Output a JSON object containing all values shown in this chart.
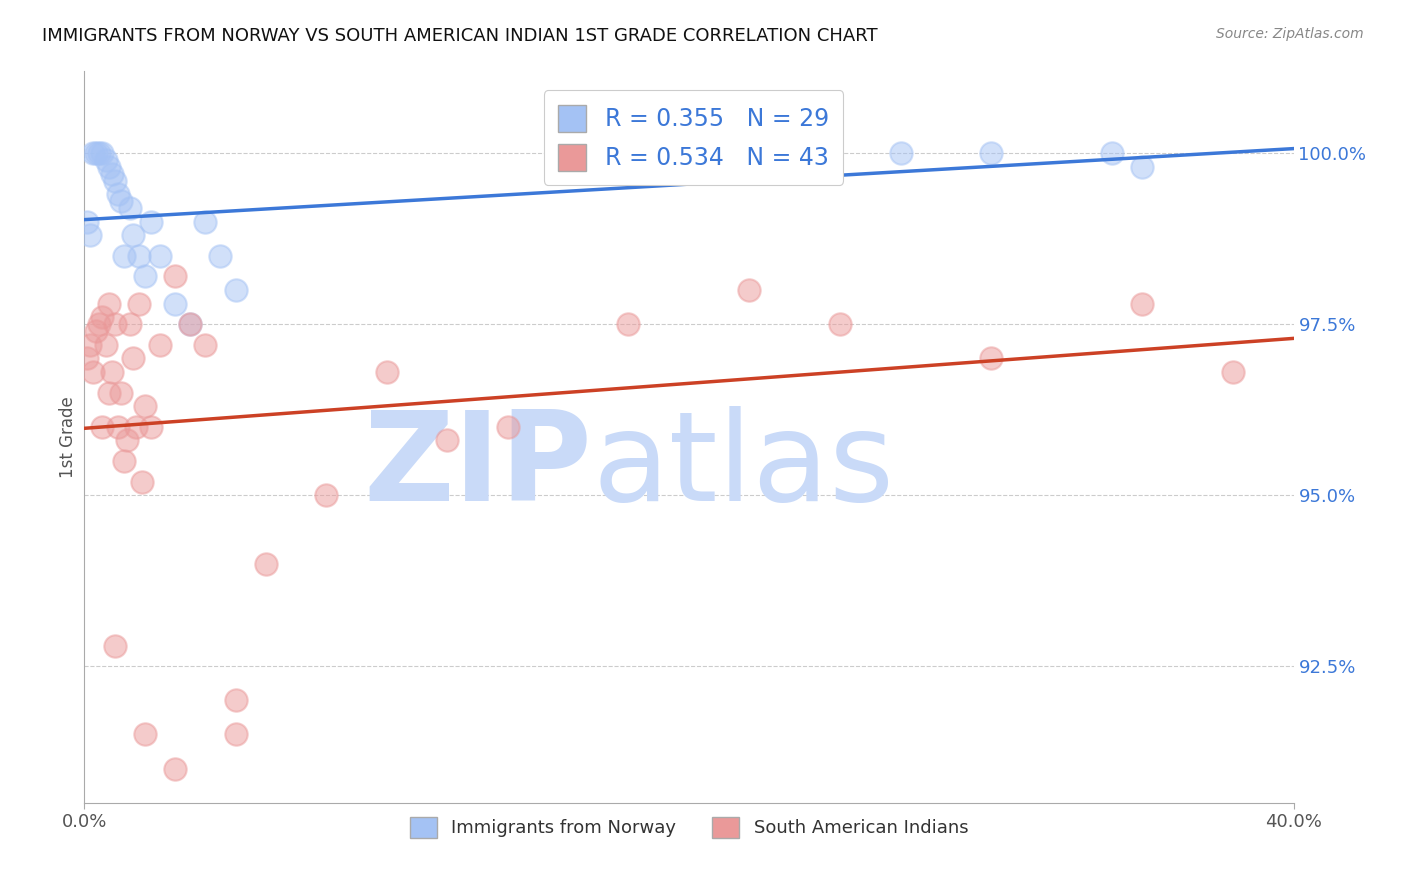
{
  "title": "IMMIGRANTS FROM NORWAY VS SOUTH AMERICAN INDIAN 1ST GRADE CORRELATION CHART",
  "source_text": "Source: ZipAtlas.com",
  "ylabel": "1st Grade",
  "xlim": [
    0.0,
    0.4
  ],
  "ylim": [
    0.905,
    1.012
  ],
  "yticks": [
    0.925,
    0.95,
    0.975,
    1.0
  ],
  "ytick_labels": [
    "92.5%",
    "95.0%",
    "97.5%",
    "100.0%"
  ],
  "xticks": [
    0.0,
    0.4
  ],
  "xtick_labels": [
    "0.0%",
    "40.0%"
  ],
  "blue_color": "#a4c2f4",
  "pink_color": "#ea9999",
  "blue_line_color": "#3c78d8",
  "pink_line_color": "#cc4125",
  "R_blue": 0.355,
  "N_blue": 29,
  "R_pink": 0.534,
  "N_pink": 43,
  "watermark_zip": "ZIP",
  "watermark_atlas": "atlas",
  "watermark_color_zip": "#c9daf8",
  "watermark_color_atlas": "#c9daf8",
  "norway_x": [
    0.001,
    0.002,
    0.003,
    0.004,
    0.005,
    0.006,
    0.007,
    0.008,
    0.009,
    0.01,
    0.011,
    0.012,
    0.013,
    0.015,
    0.016,
    0.018,
    0.02,
    0.022,
    0.025,
    0.03,
    0.035,
    0.04,
    0.045,
    0.05,
    0.22,
    0.27,
    0.3,
    0.34,
    0.35
  ],
  "norway_y": [
    0.99,
    0.988,
    1.0,
    1.0,
    1.0,
    1.0,
    0.999,
    0.998,
    0.997,
    0.996,
    0.994,
    0.993,
    0.985,
    0.992,
    0.988,
    0.985,
    0.982,
    0.99,
    0.985,
    0.978,
    0.975,
    0.99,
    0.985,
    0.98,
    1.0,
    1.0,
    1.0,
    1.0,
    0.998
  ],
  "sa_x": [
    0.001,
    0.002,
    0.003,
    0.004,
    0.005,
    0.006,
    0.007,
    0.008,
    0.009,
    0.01,
    0.011,
    0.012,
    0.013,
    0.014,
    0.015,
    0.016,
    0.017,
    0.018,
    0.019,
    0.02,
    0.022,
    0.025,
    0.03,
    0.035,
    0.04,
    0.05,
    0.06,
    0.08,
    0.1,
    0.12,
    0.14,
    0.18,
    0.22,
    0.25,
    0.3,
    0.35,
    0.38,
    0.05,
    0.03,
    0.02,
    0.01,
    0.008,
    0.006
  ],
  "sa_y": [
    0.97,
    0.972,
    0.968,
    0.974,
    0.975,
    0.976,
    0.972,
    0.978,
    0.968,
    0.975,
    0.96,
    0.965,
    0.955,
    0.958,
    0.975,
    0.97,
    0.96,
    0.978,
    0.952,
    0.963,
    0.96,
    0.972,
    0.982,
    0.975,
    0.972,
    0.915,
    0.94,
    0.95,
    0.968,
    0.958,
    0.96,
    0.975,
    0.98,
    0.975,
    0.97,
    0.978,
    0.968,
    0.92,
    0.91,
    0.915,
    0.928,
    0.965,
    0.96
  ]
}
